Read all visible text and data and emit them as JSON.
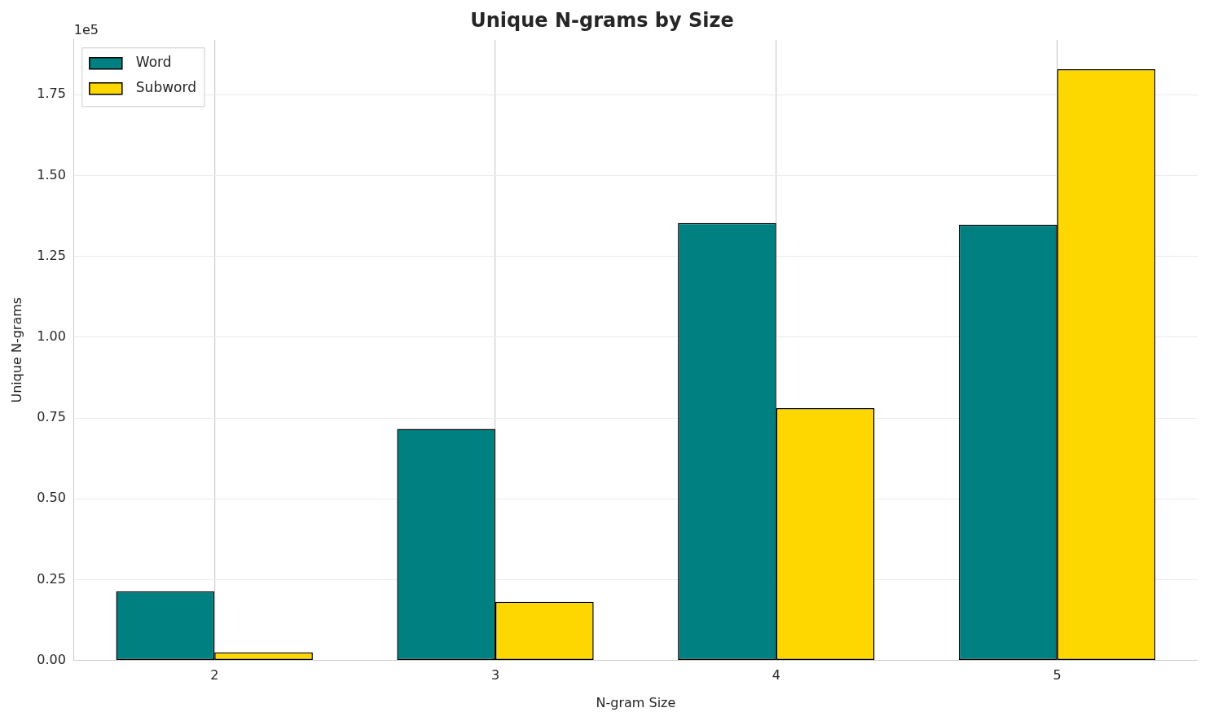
{
  "chart_data": {
    "type": "bar",
    "title": "Unique N-grams by Size",
    "xlabel": "N-gram Size",
    "ylabel": "Unique N-grams",
    "categories": [
      "2",
      "3",
      "4",
      "5"
    ],
    "series": [
      {
        "name": "Word",
        "color": "#008080",
        "values": [
          0.214,
          0.716,
          1.353,
          1.348
        ]
      },
      {
        "name": "Subword",
        "color": "#ffd700",
        "values": [
          0.025,
          0.181,
          0.78,
          1.829
        ]
      }
    ],
    "ylim": [
      0,
      1.92
    ],
    "yticks": [
      {
        "value": 0,
        "label": "0.00"
      },
      0.25,
      {
        "value": 0.5,
        "label": "0.50"
      },
      0.75,
      {
        "value": 1,
        "label": "1.00"
      },
      1.25,
      {
        "value": 1.5,
        "label": "1.50"
      },
      1.75
    ],
    "annotations": [
      "1e5"
    ],
    "grid": true,
    "legend": "top left"
  }
}
